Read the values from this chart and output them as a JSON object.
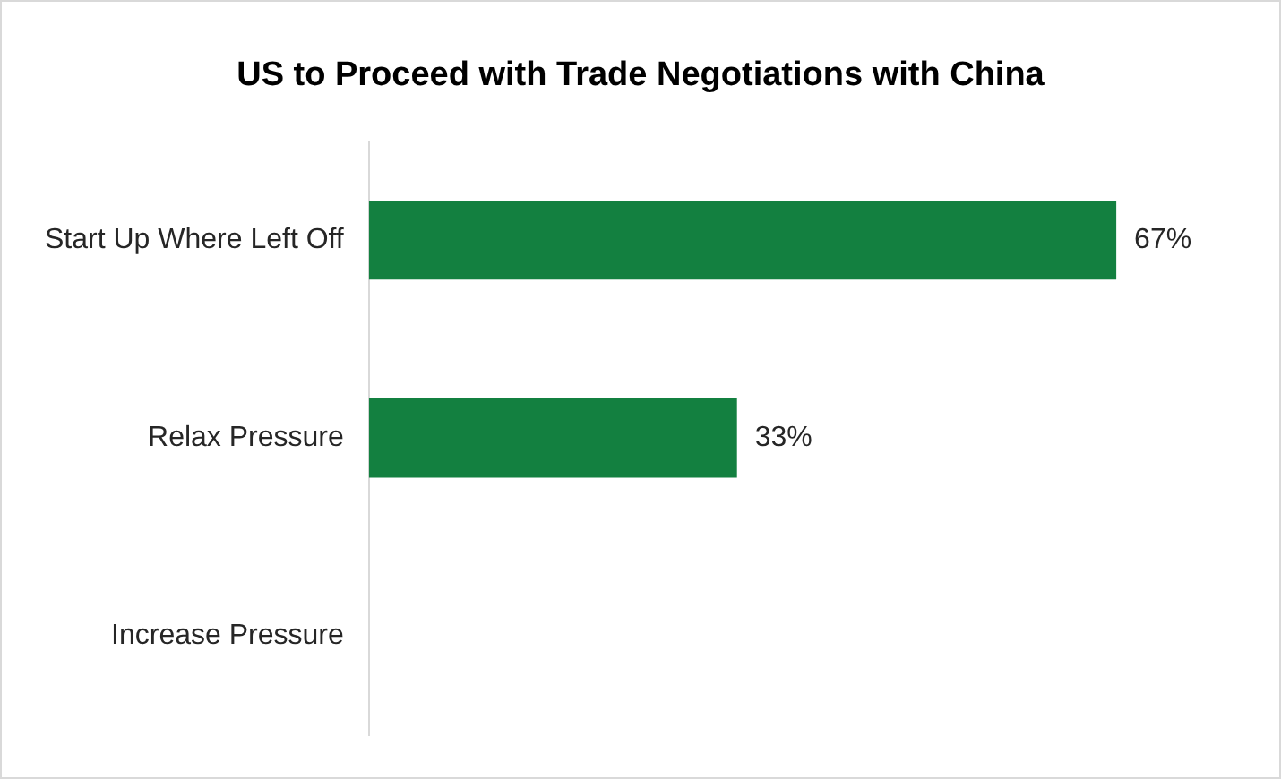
{
  "chart_data": {
    "type": "bar",
    "orientation": "horizontal",
    "title": "US to Proceed with Trade Negotiations with China",
    "categories": [
      "Start Up Where Left Off",
      "Relax Pressure",
      "Increase Pressure"
    ],
    "values": [
      67,
      33,
      0
    ],
    "value_labels": [
      "67%",
      "33%",
      null
    ],
    "color": "#138040",
    "legend": false,
    "tick_labels": "y"
  }
}
